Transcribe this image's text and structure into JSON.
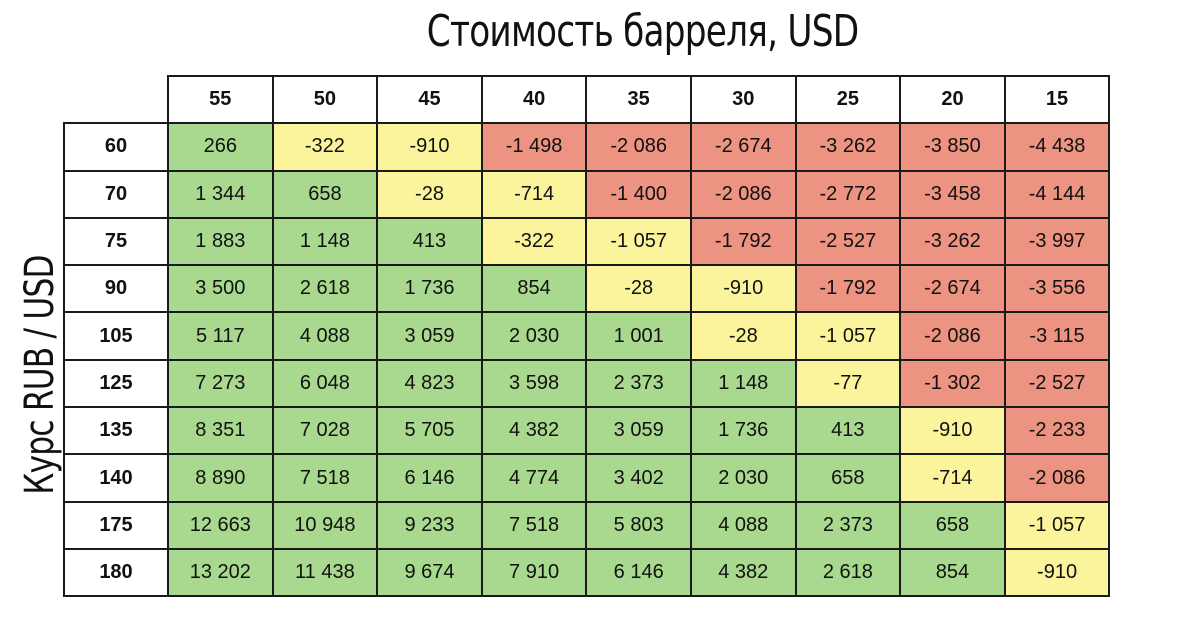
{
  "chart_data": {
    "type": "heatmap",
    "title": "Стоимость барреля, USD",
    "ylabel": "Курс RUB / USD",
    "columns": [
      "55",
      "50",
      "45",
      "40",
      "35",
      "30",
      "25",
      "20",
      "15"
    ],
    "rows": [
      {
        "label": "60",
        "values": [
          "266",
          "-322",
          "-910",
          "-1 498",
          "-2 086",
          "-2 674",
          "-3 262",
          "-3 850",
          "-4 438"
        ]
      },
      {
        "label": "70",
        "values": [
          "1 344",
          "658",
          "-28",
          "-714",
          "-1 400",
          "-2 086",
          "-2 772",
          "-3 458",
          "-4 144"
        ]
      },
      {
        "label": "75",
        "values": [
          "1 883",
          "1 148",
          "413",
          "-322",
          "-1 057",
          "-1 792",
          "-2 527",
          "-3 262",
          "-3 997"
        ]
      },
      {
        "label": "90",
        "values": [
          "3 500",
          "2 618",
          "1 736",
          "854",
          "-28",
          "-910",
          "-1 792",
          "-2 674",
          "-3 556"
        ]
      },
      {
        "label": "105",
        "values": [
          "5 117",
          "4 088",
          "3 059",
          "2 030",
          "1 001",
          "-28",
          "-1 057",
          "-2 086",
          "-3 115"
        ]
      },
      {
        "label": "125",
        "values": [
          "7 273",
          "6 048",
          "4 823",
          "3 598",
          "2 373",
          "1 148",
          "-77",
          "-1 302",
          "-2 527"
        ]
      },
      {
        "label": "135",
        "values": [
          "8 351",
          "7 028",
          "5 705",
          "4 382",
          "3 059",
          "1 736",
          "413",
          "-910",
          "-2 233"
        ]
      },
      {
        "label": "140",
        "values": [
          "8 890",
          "7 518",
          "6 146",
          "4 774",
          "3 402",
          "2 030",
          "658",
          "-714",
          "-2 086"
        ]
      },
      {
        "label": "175",
        "values": [
          "12 663",
          "10 948",
          "9 233",
          "7 518",
          "5 803",
          "4 088",
          "2 373",
          "658",
          "-1 057"
        ]
      },
      {
        "label": "180",
        "values": [
          "13 202",
          "11 438",
          "9 674",
          "7 910",
          "6 146",
          "4 382",
          "2 618",
          "854",
          "-910"
        ]
      }
    ],
    "cell_colors": [
      [
        "green",
        "yellow",
        "yellow",
        "red",
        "red",
        "red",
        "red",
        "red",
        "red"
      ],
      [
        "green",
        "green",
        "yellow",
        "yellow",
        "red",
        "red",
        "red",
        "red",
        "red"
      ],
      [
        "green",
        "green",
        "green",
        "yellow",
        "yellow",
        "red",
        "red",
        "red",
        "red"
      ],
      [
        "green",
        "green",
        "green",
        "green",
        "yellow",
        "yellow",
        "red",
        "red",
        "red"
      ],
      [
        "green",
        "green",
        "green",
        "green",
        "green",
        "yellow",
        "yellow",
        "red",
        "red"
      ],
      [
        "green",
        "green",
        "green",
        "green",
        "green",
        "green",
        "yellow",
        "red",
        "red"
      ],
      [
        "green",
        "green",
        "green",
        "green",
        "green",
        "green",
        "green",
        "yellow",
        "red"
      ],
      [
        "green",
        "green",
        "green",
        "green",
        "green",
        "green",
        "green",
        "yellow",
        "red"
      ],
      [
        "green",
        "green",
        "green",
        "green",
        "green",
        "green",
        "green",
        "green",
        "yellow"
      ],
      [
        "green",
        "green",
        "green",
        "green",
        "green",
        "green",
        "green",
        "green",
        "yellow"
      ]
    ],
    "palette": {
      "green": "#a8d98e",
      "yellow": "#fbf49c",
      "red": "#ec9382"
    },
    "grid": true
  }
}
